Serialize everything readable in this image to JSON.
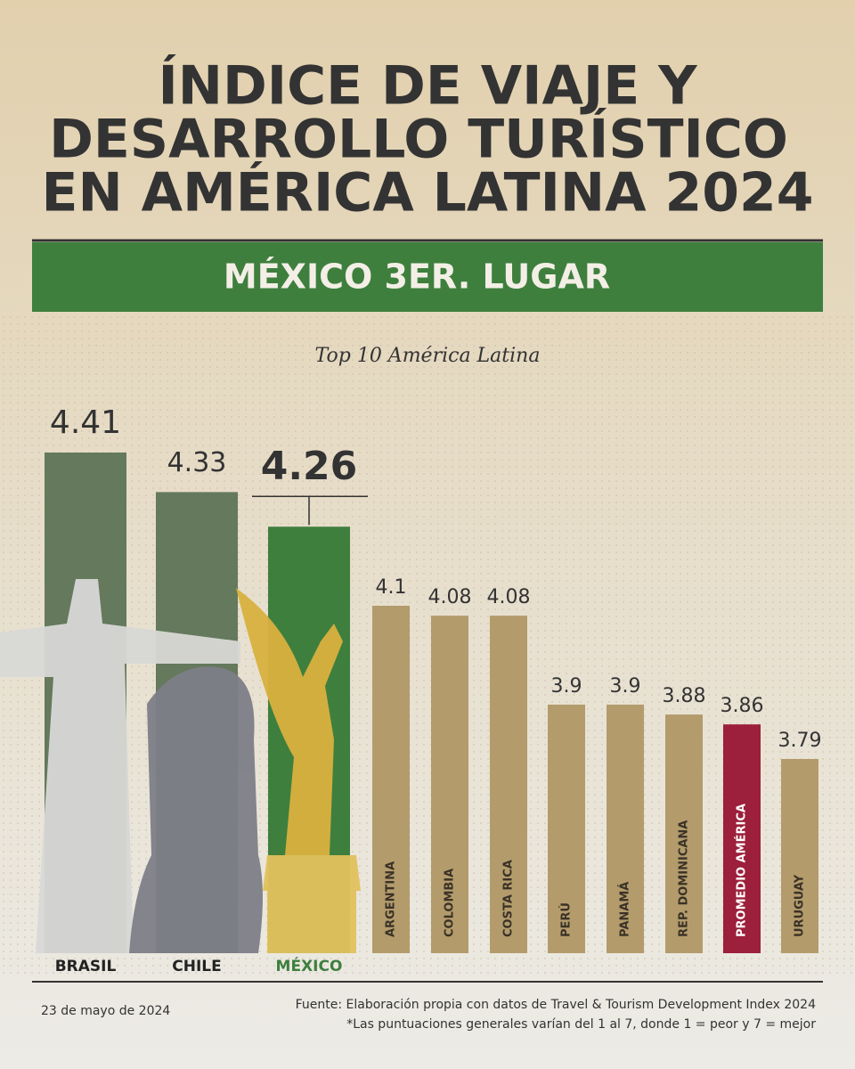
{
  "chart_data": {
    "type": "bar",
    "title": [
      "ÍNDICE DE VIAJE Y",
      "DESARROLLO TURÍSTICO",
      "EN AMÉRICA LATINA 2024"
    ],
    "banner": "MÉXICO 3ER. LUGAR",
    "subtitle": "Top 10 América Latina",
    "categories": [
      "BRASIL",
      "CHILE",
      "MÉXICO",
      "ARGENTINA",
      "COLOMBIA",
      "COSTA RICA",
      "PERÚ",
      "PANAMÁ",
      "REP. DOMINICANA",
      "PROMEDIO AMÉRICA",
      "URUGUAY"
    ],
    "values": [
      4.41,
      4.33,
      4.26,
      4.1,
      4.08,
      4.08,
      3.9,
      3.9,
      3.88,
      3.86,
      3.79
    ],
    "colors": [
      "#65795c",
      "#65795c",
      "#3e7f3e",
      "#b39b6c",
      "#b39b6c",
      "#b39b6c",
      "#b39b6c",
      "#b39b6c",
      "#b39b6c",
      "#9c1f3b",
      "#b39b6c"
    ],
    "date": "23 de mayo de 2024",
    "source": [
      "Fuente: Elaboración propia con datos de Travel & Tourism Development Index 2024",
      "*Las puntuaciones generales varían del 1 al 7, donde 1 = peor y 7 = mejor"
    ]
  }
}
